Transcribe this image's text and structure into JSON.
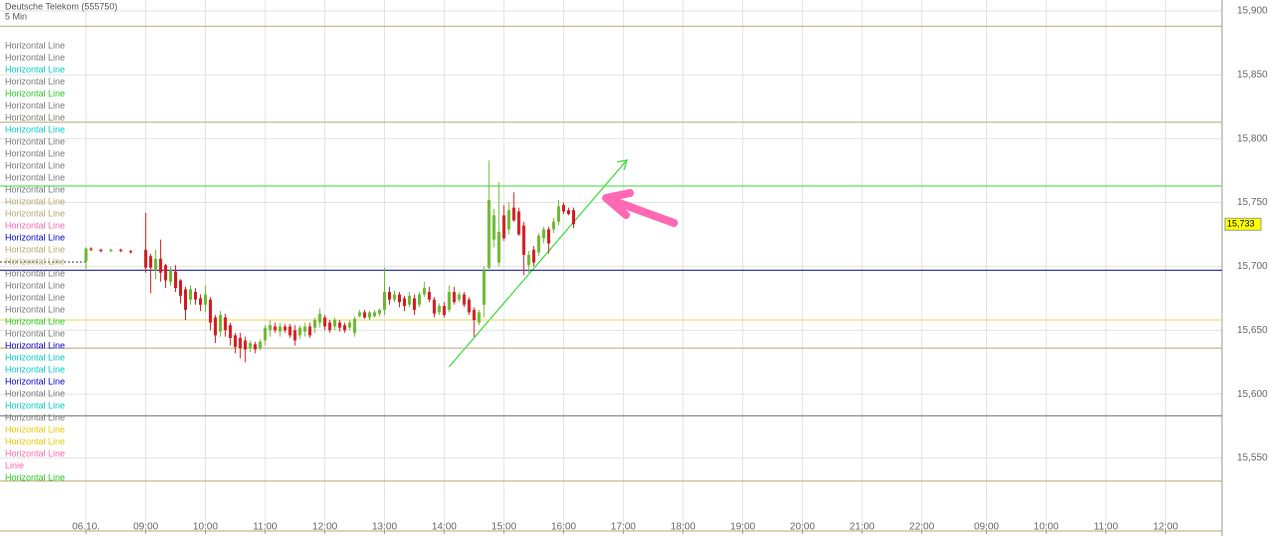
{
  "chart_data": {
    "type": "candlestick",
    "title": "Deutsche Telekom (555750)",
    "subtitle": "5 Min",
    "xlim": [
      -17.29,
      228.34
    ],
    "ylim": [
      15.4936,
      15.9086
    ],
    "xticks": [
      {
        "value": 0,
        "label": "06.10."
      },
      {
        "value": 12,
        "label": "09:00"
      },
      {
        "value": 24,
        "label": "10:00"
      },
      {
        "value": 36,
        "label": "11:00"
      },
      {
        "value": 48,
        "label": "12:00"
      },
      {
        "value": 60,
        "label": "13:00"
      },
      {
        "value": 72,
        "label": "14:00"
      },
      {
        "value": 84,
        "label": "15:00"
      },
      {
        "value": 96,
        "label": "16:00"
      },
      {
        "value": 108,
        "label": "17:00"
      },
      {
        "value": 120,
        "label": "18:00"
      },
      {
        "value": 132,
        "label": "19:00"
      },
      {
        "value": 144,
        "label": "20:00"
      },
      {
        "value": 156,
        "label": "21:00"
      },
      {
        "value": 168,
        "label": "22:00"
      },
      {
        "value": 181,
        "label": "09:00"
      },
      {
        "value": 193,
        "label": "10:00"
      },
      {
        "value": 205,
        "label": "11:00"
      },
      {
        "value": 217,
        "label": "12:00"
      }
    ],
    "yticks": [
      {
        "value": 15.55,
        "label": "15,550"
      },
      {
        "value": 15.6,
        "label": "15,600"
      },
      {
        "value": 15.65,
        "label": "15,650"
      },
      {
        "value": 15.7,
        "label": "15,700"
      },
      {
        "value": 15.75,
        "label": "15,750"
      },
      {
        "value": 15.8,
        "label": "15,800"
      },
      {
        "value": 15.85,
        "label": "15,850"
      },
      {
        "value": 15.9,
        "label": "15,900"
      }
    ],
    "grid": true,
    "up_color": "#6ab82e",
    "down_color": "#d2191e",
    "x": [
      0,
      1,
      3,
      5,
      7,
      9,
      12,
      13,
      14,
      15,
      16,
      17,
      18,
      19,
      20,
      21,
      22,
      23,
      24,
      25,
      26,
      27,
      28,
      29,
      30,
      31,
      32,
      33,
      34,
      35,
      36,
      37,
      38,
      39,
      40,
      41,
      42,
      43,
      44,
      45,
      46,
      47,
      48,
      49,
      50,
      51,
      52,
      53,
      54,
      55,
      56,
      57,
      58,
      59,
      60,
      61,
      62,
      63,
      64,
      65,
      66,
      67,
      68,
      69,
      70,
      71,
      72,
      73,
      74,
      75,
      76,
      77,
      78,
      79,
      80,
      81,
      82,
      83,
      84,
      85,
      86,
      87,
      88,
      89,
      90,
      91,
      92,
      93,
      94,
      95,
      96,
      97,
      98
    ],
    "open": [
      15.704,
      15.714,
      15.713,
      15.712,
      15.713,
      15.712,
      15.713,
      15.708,
      15.697,
      15.706,
      15.701,
      15.688,
      15.696,
      15.689,
      15.682,
      15.674,
      15.68,
      15.675,
      15.67,
      15.674,
      15.66,
      15.649,
      15.66,
      15.654,
      15.646,
      15.644,
      15.642,
      15.636,
      15.639,
      15.636,
      15.642,
      15.65,
      15.653,
      15.649,
      15.653,
      15.653,
      15.65,
      15.646,
      15.649,
      15.653,
      15.652,
      15.656,
      15.66,
      15.656,
      15.653,
      15.656,
      15.654,
      15.652,
      15.648,
      15.661,
      15.664,
      15.66,
      15.661,
      15.663,
      15.666,
      15.68,
      15.674,
      15.678,
      15.675,
      15.67,
      15.675,
      15.67,
      15.678,
      15.68,
      15.674,
      15.664,
      15.669,
      15.666,
      15.68,
      15.674,
      15.678,
      15.674,
      15.666,
      15.656,
      15.67,
      15.699,
      15.721,
      15.703,
      15.74,
      15.729,
      15.746,
      15.743,
      15.732,
      15.701,
      15.713,
      15.711,
      15.722,
      15.729,
      15.729,
      15.735,
      15.748,
      15.744,
      15.744
    ],
    "high": [
      15.715,
      15.715,
      15.714,
      15.714,
      15.714,
      15.713,
      15.742,
      15.71,
      15.713,
      15.721,
      15.702,
      15.7,
      15.701,
      15.69,
      15.684,
      15.685,
      15.683,
      15.678,
      15.685,
      15.676,
      15.662,
      15.665,
      15.663,
      15.656,
      15.648,
      15.648,
      15.645,
      15.642,
      15.641,
      15.643,
      15.654,
      15.658,
      15.656,
      15.656,
      15.655,
      15.655,
      15.654,
      15.654,
      15.656,
      15.656,
      15.66,
      15.667,
      15.662,
      15.658,
      15.66,
      15.658,
      15.656,
      15.658,
      15.661,
      15.666,
      15.666,
      15.665,
      15.666,
      15.667,
      15.699,
      15.684,
      15.681,
      15.68,
      15.677,
      15.68,
      15.678,
      15.68,
      15.688,
      15.684,
      15.676,
      15.671,
      15.672,
      15.685,
      15.684,
      15.68,
      15.68,
      15.676,
      15.668,
      15.666,
      15.7,
      15.783,
      15.745,
      15.766,
      15.748,
      15.75,
      15.758,
      15.746,
      15.735,
      15.712,
      15.716,
      15.726,
      15.731,
      15.731,
      15.738,
      15.752,
      15.75,
      15.746,
      15.746
    ],
    "low": [
      15.697,
      15.712,
      15.711,
      15.711,
      15.711,
      15.71,
      15.695,
      15.679,
      15.69,
      15.688,
      15.683,
      15.685,
      15.68,
      15.671,
      15.658,
      15.67,
      15.67,
      15.665,
      15.664,
      15.65,
      15.64,
      15.645,
      15.645,
      15.638,
      15.632,
      15.628,
      15.625,
      15.633,
      15.632,
      15.634,
      15.638,
      15.645,
      15.648,
      15.645,
      15.648,
      15.644,
      15.638,
      15.643,
      15.645,
      15.644,
      15.648,
      15.652,
      15.65,
      15.648,
      15.65,
      15.649,
      15.648,
      15.65,
      15.645,
      15.66,
      15.659,
      15.658,
      15.66,
      15.661,
      15.662,
      15.67,
      15.672,
      15.668,
      15.665,
      15.668,
      15.662,
      15.668,
      15.676,
      15.672,
      15.66,
      15.662,
      15.66,
      15.664,
      15.67,
      15.672,
      15.668,
      15.662,
      15.645,
      15.654,
      15.66,
      15.696,
      15.715,
      15.7,
      15.72,
      15.725,
      15.735,
      15.724,
      15.693,
      15.695,
      15.7,
      15.708,
      15.718,
      15.71,
      15.726,
      15.732,
      15.741,
      15.74,
      15.73
    ],
    "close": [
      15.714,
      15.713,
      15.712,
      15.713,
      15.712,
      15.711,
      15.699,
      15.699,
      15.706,
      15.695,
      15.689,
      15.697,
      15.683,
      15.677,
      15.666,
      15.682,
      15.674,
      15.67,
      15.678,
      15.656,
      15.646,
      15.662,
      15.65,
      15.644,
      15.637,
      15.636,
      15.635,
      15.64,
      15.635,
      15.641,
      15.652,
      15.654,
      15.65,
      15.653,
      15.65,
      15.646,
      15.642,
      15.652,
      15.653,
      15.646,
      15.658,
      15.663,
      15.653,
      15.65,
      15.658,
      15.652,
      15.65,
      15.656,
      15.659,
      15.664,
      15.66,
      15.664,
      15.664,
      15.666,
      15.68,
      15.674,
      15.678,
      15.672,
      15.669,
      15.677,
      15.666,
      15.678,
      15.683,
      15.674,
      15.663,
      15.669,
      15.662,
      15.68,
      15.672,
      15.678,
      15.67,
      15.664,
      15.658,
      15.664,
      15.697,
      15.752,
      15.74,
      15.727,
      15.722,
      15.744,
      15.736,
      15.725,
      15.709,
      15.709,
      15.703,
      15.724,
      15.729,
      15.718,
      15.735,
      15.747,
      15.743,
      15.741,
      15.733
    ],
    "last_price": {
      "value": 15.733,
      "label": "15,733"
    },
    "horizontal_lines": [
      {
        "value": 15.888,
        "color": "#b5a96a"
      },
      {
        "value": 15.813,
        "color": "#b5a96a"
      },
      {
        "value": 15.763,
        "color": "#33dd33"
      },
      {
        "value": 15.697,
        "color": "#000099"
      },
      {
        "value": 15.658,
        "color": "#e8d44d"
      },
      {
        "value": 15.636,
        "color": "#b5a96a"
      },
      {
        "value": 15.583,
        "color": "#666666"
      },
      {
        "value": 15.532,
        "color": "#b5a96a"
      }
    ],
    "line_labels": [
      {
        "text": "Horizontal Line",
        "color": "#777777"
      },
      {
        "text": "Horizontal Line",
        "color": "#777777"
      },
      {
        "text": "Horizontal Line",
        "color": "#00cccc"
      },
      {
        "text": "Horizontal Line",
        "color": "#777777"
      },
      {
        "text": "Horizontal Line",
        "color": "#22cc22"
      },
      {
        "text": "Horizontal Line",
        "color": "#777777"
      },
      {
        "text": "Horizontal Line",
        "color": "#777777"
      },
      {
        "text": "Horizontal Line",
        "color": "#00cccc"
      },
      {
        "text": "Horizontal Line",
        "color": "#777777"
      },
      {
        "text": "Horizontal Line",
        "color": "#777777"
      },
      {
        "text": "Horizontal Line",
        "color": "#777777"
      },
      {
        "text": "Horizontal Line",
        "color": "#777777"
      },
      {
        "text": "Horizontal Line",
        "color": "#777777"
      },
      {
        "text": "Horizontal Line",
        "color": "#b5a96a"
      },
      {
        "text": "Horizontal Line",
        "color": "#b5a96a"
      },
      {
        "text": "Horizontal Line",
        "color": "#ff66aa"
      },
      {
        "text": "Horizontal Line",
        "color": "#0000cc"
      },
      {
        "text": "Horizontal Line",
        "color": "#b5a96a"
      },
      {
        "text": "Horizontal Line",
        "color": "#b5a96a"
      },
      {
        "text": "Horizontal Line",
        "color": "#777777"
      },
      {
        "text": "Horizontal Line",
        "color": "#777777"
      },
      {
        "text": "Horizontal Line",
        "color": "#777777"
      },
      {
        "text": "Horizontal Line",
        "color": "#777777"
      },
      {
        "text": "Horizontal Line",
        "color": "#22cc22"
      },
      {
        "text": "Horizontal Line",
        "color": "#777777"
      },
      {
        "text": "Horizontal Line",
        "color": "#0000cc"
      },
      {
        "text": "Horizontal Line",
        "color": "#00cccc"
      },
      {
        "text": "Horizontal Line",
        "color": "#00cccc"
      },
      {
        "text": "Horizontal Line",
        "color": "#0000cc"
      },
      {
        "text": "Horizontal Line",
        "color": "#777777"
      },
      {
        "text": "Horizontal Line",
        "color": "#00cccc"
      },
      {
        "text": "Horizontal Line",
        "color": "#777777"
      },
      {
        "text": "Horizontal Line",
        "color": "#e8c800"
      },
      {
        "text": "Horizontal Line",
        "color": "#e8c800"
      },
      {
        "text": "Horizontal Line",
        "color": "#ff66aa"
      },
      {
        "text": "Linie",
        "color": "#ff66aa"
      },
      {
        "text": "Horizontal Line",
        "color": "#22cc22"
      }
    ]
  }
}
